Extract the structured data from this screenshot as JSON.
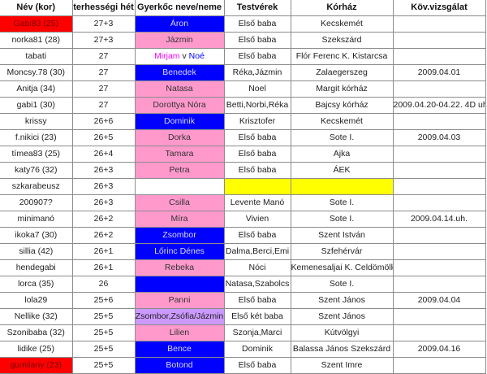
{
  "colors": {
    "mother_highlight": "#ff0000",
    "boy": "#0000ff",
    "girl": "#ff99cc",
    "twins": "#cc99ff",
    "missing": "#ffff00"
  },
  "headers": [
    "Név   (kor)",
    "terhességi hét",
    "Gyerkőc neve/neme",
    "Testvérek",
    "Kórház",
    "Köv.vizsgálat"
  ],
  "rows": [
    {
      "name": "Gabi83 (25)",
      "name_bg": "red",
      "week": "27+3",
      "child": "Áron",
      "child_bg": "blue",
      "siblings": "Első baba",
      "hospital": "Kecskemét",
      "next": ""
    },
    {
      "name": "norka81  (28)",
      "week": "27+3",
      "child": "Jázmin",
      "child_bg": "pink",
      "siblings": "Első baba",
      "hospital": "Szekszárd",
      "next": ""
    },
    {
      "name": "tabati",
      "week": "27",
      "child": "",
      "child_parts": [
        "Mirjam",
        " v ",
        "Noé"
      ],
      "child_bg": "",
      "siblings": "Első baba",
      "hospital": "Flór Ferenc K. Kistarcsa",
      "next": ""
    },
    {
      "name": "Moncsy.78 (30)",
      "week": "27",
      "child": "Benedek",
      "child_bg": "blue",
      "siblings": "Réka,Jázmin",
      "hospital": "Zalaegerszeg",
      "next": "2009.04.01"
    },
    {
      "name": "Anitja  (34)",
      "week": "27",
      "child": "Natasa",
      "child_bg": "pink",
      "siblings": "Noel",
      "hospital": "Margit kórház",
      "next": ""
    },
    {
      "name": "gabi1  (30)",
      "week": "27",
      "child": "Dorottya Nóra",
      "child_bg": "pink",
      "siblings": "Betti,Norbi,Réka",
      "hospital": "Bajcsy kórház",
      "next": "2009.04.20-04.22. 4D uh"
    },
    {
      "name": "krissy",
      "week": "26+6",
      "child": "Dominik",
      "child_bg": "blue",
      "siblings": "Krisztofer",
      "hospital": "Kecskemét",
      "next": ""
    },
    {
      "name": "f.nikici (23)",
      "week": "26+5",
      "child": "Dorka",
      "child_bg": "pink",
      "siblings": "Első baba",
      "hospital": "Sote I.",
      "next": "2009.04.03"
    },
    {
      "name": "tímea83  (25)",
      "week": "26+4",
      "child": "Tamara",
      "child_bg": "pink",
      "siblings": "Első baba",
      "hospital": "Ajka",
      "next": ""
    },
    {
      "name": "katy76   (32)",
      "week": "26+3",
      "child": "Petra",
      "child_bg": "pink",
      "siblings": "Első baba",
      "hospital": "ÁEK",
      "next": ""
    },
    {
      "name": "szkarabeusz",
      "week": "26+3",
      "child": "",
      "child_bg": "",
      "siblings": "",
      "siblings_bg": "yellow",
      "hospital": "",
      "hospital_bg": "yellow",
      "next": ""
    },
    {
      "name": "200907?",
      "week": "26+3",
      "child": "Csilla",
      "child_bg": "pink",
      "siblings": "Levente Manó",
      "hospital": "Sote I.",
      "next": ""
    },
    {
      "name": "minimanó",
      "week": "26+2",
      "child": "Míra",
      "child_bg": "pink",
      "siblings": "Vivien",
      "hospital": "Sote I.",
      "next": "2009.04.14.uh."
    },
    {
      "name": "ikoka7 (30)",
      "week": "26+2",
      "child": "Zsombor",
      "child_bg": "blue",
      "siblings": "Első baba",
      "hospital": "Szent István",
      "next": ""
    },
    {
      "name": "sillia  (42)",
      "week": "26+1",
      "child": "Lőrinc Dénes",
      "child_bg": "blue",
      "siblings": "Dalma,Berci,Emi",
      "hospital": "Szfehérvár",
      "next": ""
    },
    {
      "name": "hendegabi",
      "week": "26+1",
      "child": "Rebeka",
      "child_bg": "pink",
      "siblings": "Nóci",
      "hospital": "Kemenesaljai K. Celdömölk",
      "next": ""
    },
    {
      "name": "lorca (35)",
      "week": "26",
      "child": "",
      "child_bg": "blue",
      "siblings": "Natasa,Szabolcs",
      "hospital": "Sote I.",
      "next": ""
    },
    {
      "name": "lola29",
      "week": "25+6",
      "child": "Panni",
      "child_bg": "pink",
      "siblings": "Első baba",
      "hospital": "Szent János",
      "next": "2009.04.04"
    },
    {
      "name": "Nellike (32)",
      "week": "25+5",
      "child": "Zsombor,Zsófia/Jázmin",
      "child_bg": "lav",
      "siblings": "Első két baba",
      "hospital": "Szent János",
      "next": ""
    },
    {
      "name": "Szonibaba (32)",
      "week": "25+5",
      "child": "Lilien",
      "child_bg": "pink",
      "siblings": "Szonja,Marci",
      "hospital": "Kútvölgyi",
      "next": ""
    },
    {
      "name": "lidike  (25)",
      "week": "25+5",
      "child": "Bence",
      "child_bg": "blue",
      "siblings": "Dominik",
      "hospital": "Balassa János Szekszárd",
      "next": "2009.04.16"
    },
    {
      "name": "gumilany  (23)",
      "name_bg": "red",
      "week": "25+5",
      "child": "Botond",
      "child_bg": "blue",
      "siblings": "Első baba",
      "hospital": "Szent Imre",
      "next": ""
    }
  ]
}
